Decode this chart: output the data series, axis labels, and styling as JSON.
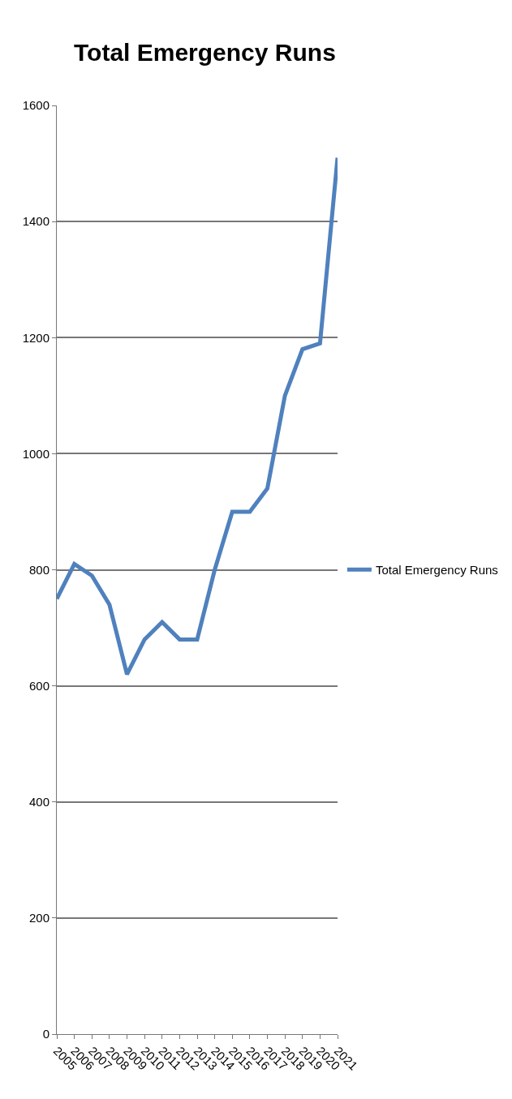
{
  "chart_data": {
    "type": "line",
    "title": "Total Emergency Runs",
    "categories": [
      "2005",
      "2006",
      "2007",
      "2008",
      "2009",
      "2010",
      "2011",
      "2012",
      "2013",
      "2014",
      "2015",
      "2016",
      "2017",
      "2018",
      "2019",
      "2020",
      "2021"
    ],
    "series": [
      {
        "name": "Total Emergency Runs",
        "color": "#4f81bd",
        "values": [
          750,
          810,
          790,
          740,
          620,
          680,
          710,
          680,
          680,
          800,
          900,
          900,
          940,
          1100,
          1180,
          1190,
          1510
        ]
      }
    ],
    "ylim": [
      0,
      1600
    ],
    "yticks": [
      0,
      200,
      400,
      600,
      800,
      1000,
      1200,
      1400,
      1600
    ],
    "grid": "y",
    "legend": "right",
    "marker": "none",
    "line_style": "solid"
  }
}
